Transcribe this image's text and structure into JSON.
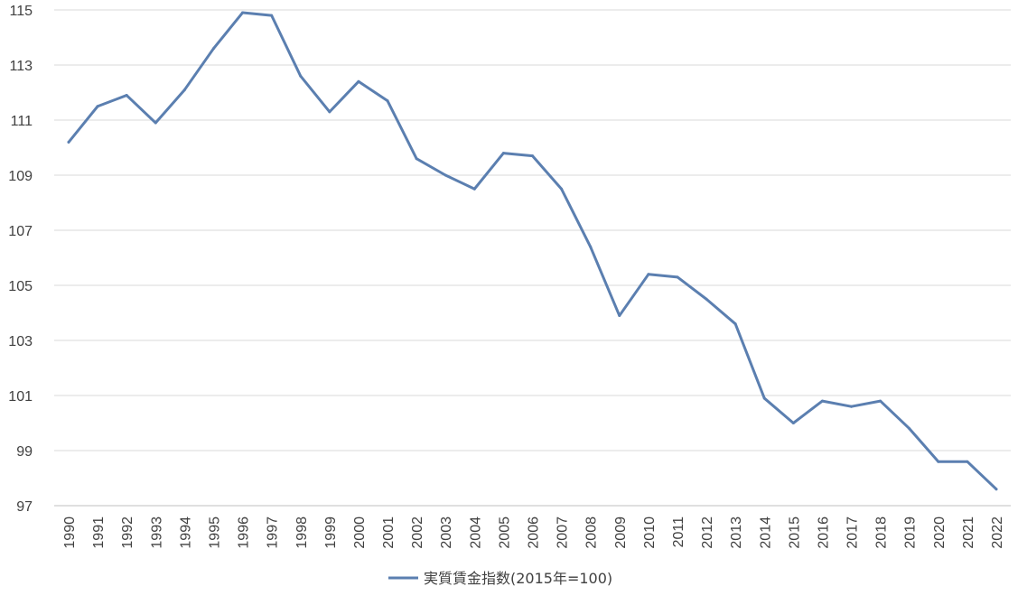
{
  "chart_data": {
    "type": "line",
    "title": "",
    "xlabel": "",
    "ylabel": "",
    "ylim": [
      97,
      115
    ],
    "yticks": [
      97,
      99,
      101,
      103,
      105,
      107,
      109,
      111,
      113,
      115
    ],
    "grid": true,
    "legend_position": "bottom-center",
    "categories": [
      "1990",
      "1991",
      "1992",
      "1993",
      "1994",
      "1995",
      "1996",
      "1997",
      "1998",
      "1999",
      "2000",
      "2001",
      "2002",
      "2003",
      "2004",
      "2005",
      "2006",
      "2007",
      "2008",
      "2009",
      "2010",
      "2011",
      "2012",
      "2013",
      "2014",
      "2015",
      "2016",
      "2017",
      "2018",
      "2019",
      "2020",
      "2021",
      "2022"
    ],
    "series": [
      {
        "name": "実質賃金指数(2015年=100)",
        "color": "#5b7fb0",
        "values": [
          110.2,
          111.5,
          111.9,
          110.9,
          112.1,
          113.6,
          114.9,
          114.8,
          112.6,
          111.3,
          112.4,
          111.7,
          109.6,
          109.0,
          108.5,
          109.8,
          109.7,
          108.5,
          106.4,
          103.9,
          105.4,
          105.3,
          104.5,
          103.6,
          100.9,
          100.0,
          100.8,
          100.6,
          100.8,
          99.8,
          98.6,
          98.6,
          97.6
        ]
      }
    ]
  }
}
